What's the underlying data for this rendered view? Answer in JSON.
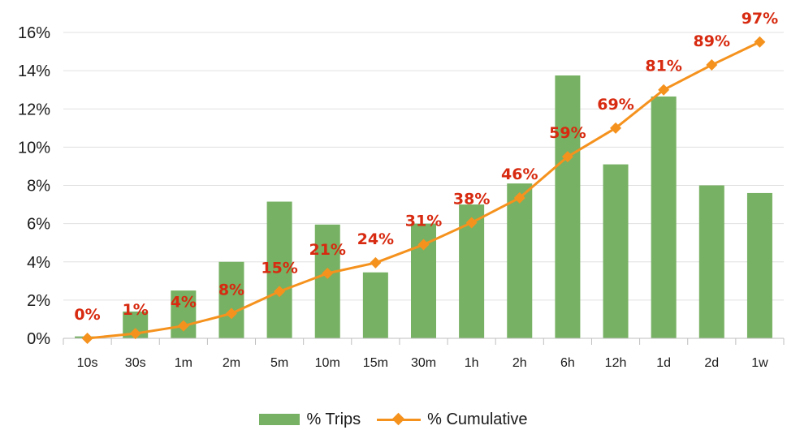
{
  "colors": {
    "bar": "#77b163",
    "line": "#f5921e",
    "label": "#d72a10",
    "grid": "#e0e0e0",
    "axis": "#bfbfbf"
  },
  "legend": {
    "trips": "% Trips",
    "cumulative": "% Cumulative"
  },
  "chart_data": {
    "type": "bar",
    "categories": [
      "10s",
      "30s",
      "1m",
      "2m",
      "5m",
      "10m",
      "15m",
      "30m",
      "1h",
      "2h",
      "6h",
      "12h",
      "1d",
      "2d",
      "1w"
    ],
    "y_ticks": [
      "0%",
      "2%",
      "4%",
      "6%",
      "8%",
      "10%",
      "12%",
      "14%",
      "16%"
    ],
    "ylim": [
      0,
      16
    ],
    "grid": true,
    "legend_position": "bottom",
    "series": [
      {
        "name": "% Trips",
        "type": "bar",
        "values": [
          0.1,
          1.4,
          2.5,
          4.0,
          7.15,
          5.95,
          3.45,
          6.0,
          7.0,
          8.1,
          13.75,
          9.1,
          12.65,
          8.0,
          7.6
        ]
      },
      {
        "name": "% Cumulative",
        "type": "line",
        "marker": "diamond",
        "values": [
          0.0,
          0.25,
          0.65,
          1.3,
          2.45,
          3.4,
          3.95,
          4.9,
          6.05,
          7.35,
          9.5,
          11.0,
          13.0,
          14.3,
          15.5
        ],
        "labels": [
          "0%",
          "1%",
          "4%",
          "8%",
          "15%",
          "21%",
          "24%",
          "31%",
          "38%",
          "46%",
          "59%",
          "69%",
          "81%",
          "89%",
          "97%"
        ]
      }
    ]
  }
}
